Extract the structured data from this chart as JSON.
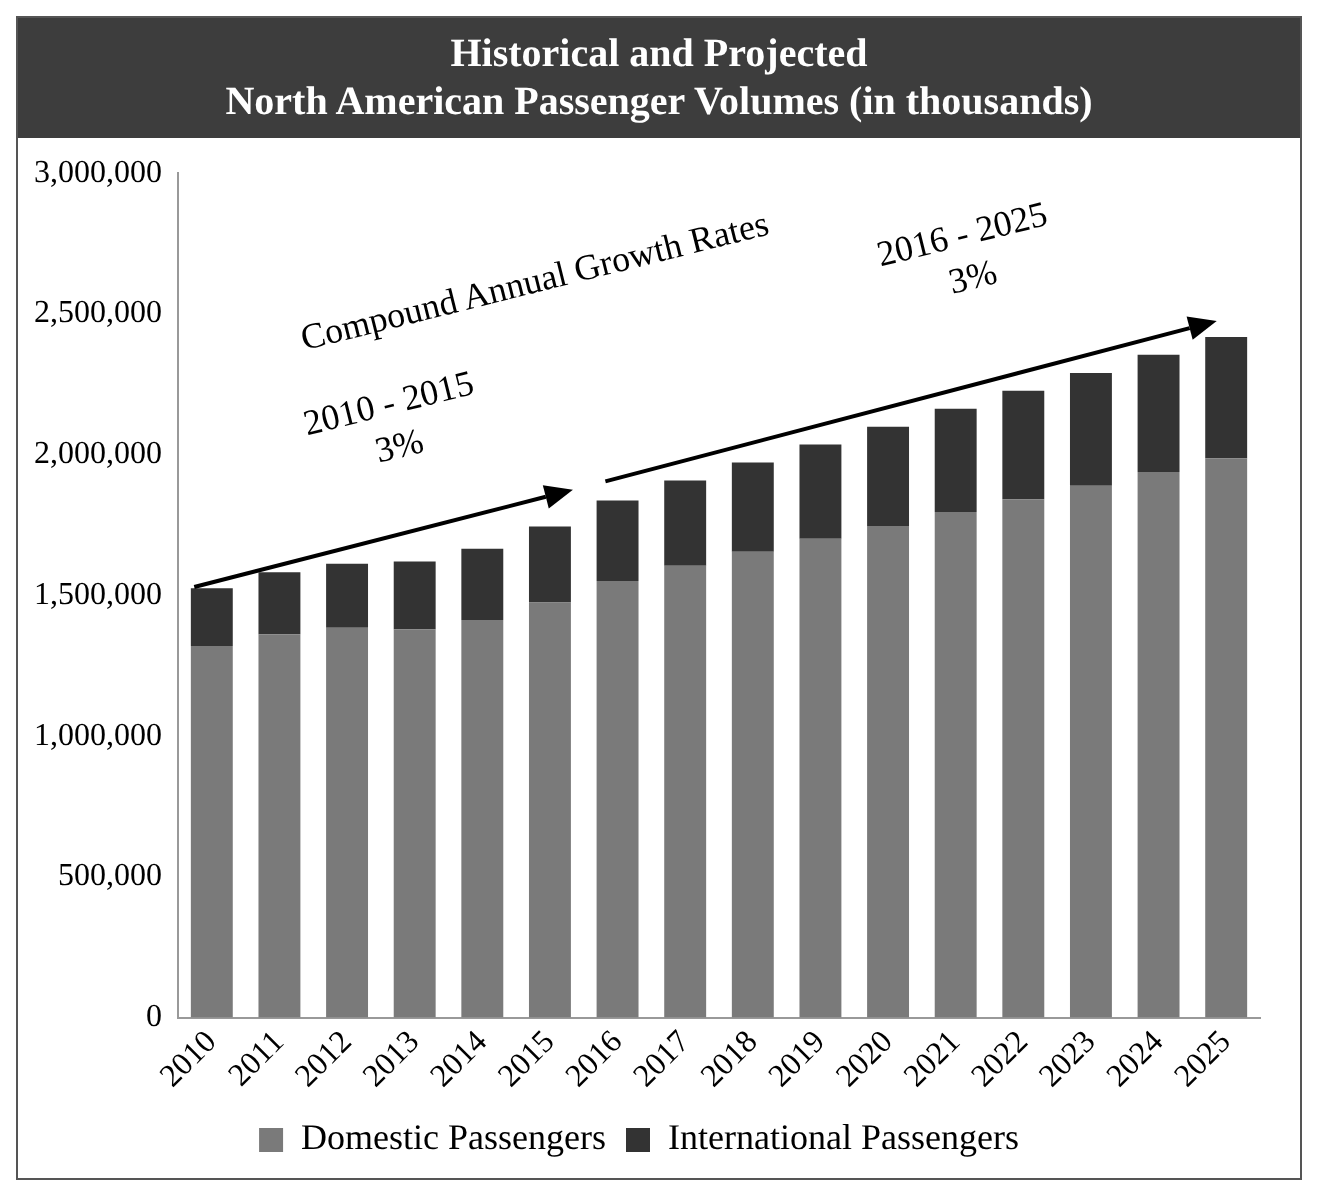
{
  "chart_data": {
    "type": "bar",
    "stacked": true,
    "title": "Historical and Projected\nNorth American Passenger Volumes (in thousands)",
    "categories": [
      "2010",
      "2011",
      "2012",
      "2013",
      "2014",
      "2015",
      "2016",
      "2017",
      "2018",
      "2019",
      "2020",
      "2021",
      "2022",
      "2023",
      "2024",
      "2025"
    ],
    "series": [
      {
        "name": "Domestic Passengers",
        "color": "#7a7a7a",
        "values": [
          1320000,
          1362000,
          1385000,
          1380000,
          1413000,
          1475000,
          1551000,
          1605000,
          1655000,
          1701000,
          1747000,
          1796000,
          1842000,
          1890000,
          1938000,
          1987000
        ]
      },
      {
        "name": "International Passengers",
        "color": "#333333",
        "values": [
          205000,
          220000,
          227000,
          240000,
          253000,
          270000,
          286000,
          303000,
          317000,
          335000,
          352000,
          367000,
          385000,
          400000,
          417000,
          431000
        ]
      }
    ],
    "ylim": [
      0,
      3000000
    ],
    "yticks": [
      0,
      {
        "value": 500000,
        "label": "500,000"
      },
      {
        "value": 1000000,
        "label": "1,000,000"
      },
      {
        "value": 1500000,
        "label": "1,500,000"
      },
      {
        "value": 2000000,
        "label": "2,000,000"
      },
      {
        "value": 2500000,
        "label": "2,500,000"
      },
      {
        "value": 3000000,
        "label": "3,000,000"
      }
    ],
    "grid": false,
    "legend": "bottom",
    "annotations": [
      "Compound Annual Growth Rates",
      "2010 - 2015\n3%",
      "2016 - 2025\n3%"
    ]
  }
}
